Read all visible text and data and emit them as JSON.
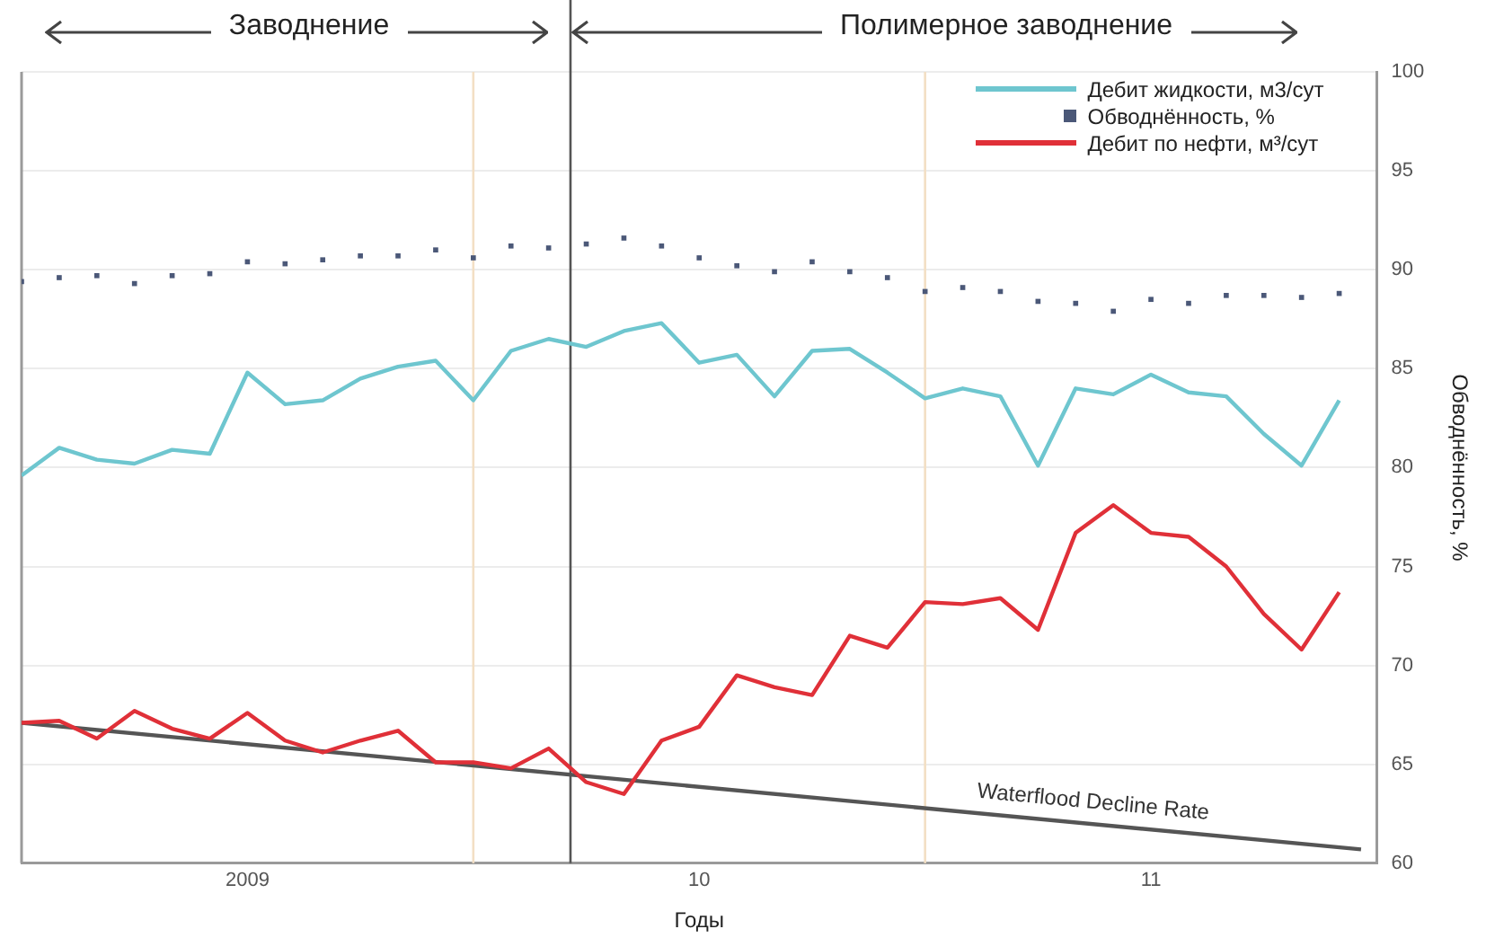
{
  "chart_data": {
    "type": "line",
    "xlabel": "Годы",
    "ylabel": "Обводнённость, %",
    "annotations": [
      "Заводнение",
      "Полимерное заводнение",
      "Waterflood Decline Rate"
    ],
    "x": [
      "2009-01",
      "2009-02",
      "2009-03",
      "2009-04",
      "2009-05",
      "2009-06",
      "2009-07",
      "2009-08",
      "2009-09",
      "2009-10",
      "2009-11",
      "2009-12",
      "2010-01",
      "2010-02",
      "2010-03",
      "2010-04",
      "2010-05",
      "2010-06",
      "2010-07",
      "2010-08",
      "2010-09",
      "2010-10",
      "2010-11",
      "2010-12",
      "2011-01",
      "2011-02",
      "2011-03",
      "2011-04",
      "2011-05",
      "2011-06",
      "2011-07",
      "2011-08",
      "2011-09",
      "2011-10",
      "2011-11",
      "2011-12"
    ],
    "series": [
      {
        "name": "Дебит жидкости, м3/сут",
        "color": "#6ec6cf",
        "values": [
          79.6,
          81.0,
          80.4,
          80.2,
          80.9,
          80.7,
          84.8,
          83.2,
          83.4,
          84.5,
          85.1,
          85.4,
          83.4,
          85.9,
          86.5,
          86.1,
          86.9,
          87.3,
          85.3,
          85.7,
          83.6,
          85.9,
          86.0,
          84.8,
          83.5,
          84.0,
          83.6,
          80.1,
          84.0,
          83.7,
          84.7,
          83.8,
          83.6,
          81.7,
          80.1,
          83.4
        ]
      },
      {
        "name": "Обводнённость, %",
        "type": "scatter",
        "marker": "square",
        "color": "#4b5878",
        "values": [
          89.4,
          89.6,
          89.7,
          89.3,
          89.7,
          89.8,
          90.4,
          90.3,
          90.5,
          90.7,
          90.7,
          91.0,
          90.6,
          91.2,
          91.1,
          91.3,
          91.6,
          91.2,
          90.6,
          90.2,
          89.9,
          90.4,
          89.9,
          89.6,
          88.9,
          89.1,
          88.9,
          88.4,
          88.3,
          87.9,
          88.5,
          88.3,
          88.7,
          88.7,
          88.6,
          88.8
        ]
      },
      {
        "name": "Дебит по нефти, м³/сут",
        "color": "#e03038",
        "values": [
          67.1,
          67.2,
          66.3,
          67.7,
          66.8,
          66.3,
          67.6,
          66.2,
          65.6,
          66.2,
          66.7,
          65.1,
          65.1,
          64.8,
          65.8,
          64.1,
          63.5,
          66.2,
          66.9,
          69.5,
          68.9,
          68.5,
          71.5,
          70.9,
          73.2,
          73.1,
          73.4,
          71.8,
          76.7,
          78.1,
          76.7,
          76.5,
          75.0,
          72.6,
          70.8,
          73.7
        ]
      },
      {
        "color": "#555555",
        "x": [
          "2009-01",
          "2011-12-19"
        ],
        "values": [
          67.1,
          60.7
        ]
      }
    ],
    "xlim": [
      "2009-01",
      "2012-01"
    ],
    "xticks": [
      {
        "value": "2009-07",
        "label": "2009"
      },
      {
        "value": "2010-07",
        "label": "10"
      },
      {
        "value": "2011-07",
        "label": "11"
      }
    ],
    "ylim": [
      60,
      100
    ],
    "yticks": [
      60,
      65,
      70,
      75,
      80,
      85,
      90,
      95,
      100
    ],
    "ref_lines": [
      {
        "axis": "x",
        "value": "2010-03-19",
        "color": "#555555"
      },
      {
        "axis": "x",
        "value": "2010-01",
        "color": "#f3dfc4"
      },
      {
        "axis": "x",
        "value": "2011-01",
        "color": "#f3dfc4"
      }
    ],
    "grid": "y",
    "legend": "top right"
  }
}
